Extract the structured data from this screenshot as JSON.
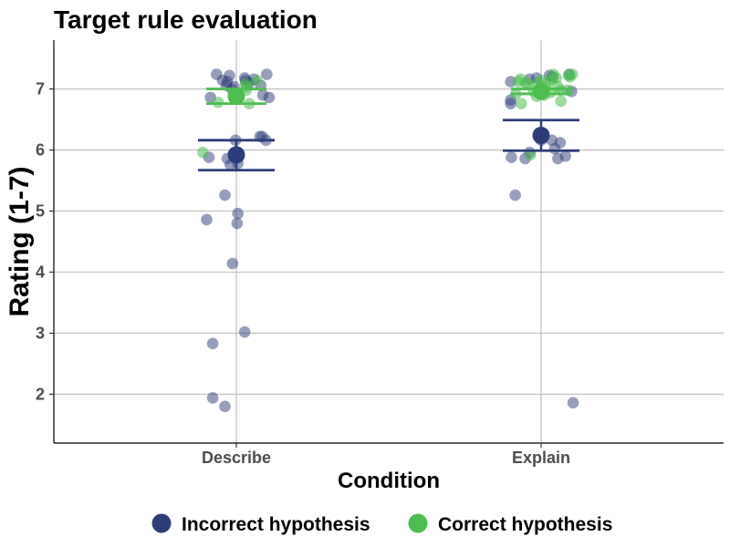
{
  "chart_data": {
    "type": "scatter",
    "title": "Target rule evaluation",
    "xlabel": "Condition",
    "ylabel": "Rating (1-7)",
    "categories": [
      "Describe",
      "Explain"
    ],
    "yticks": [
      2,
      3,
      4,
      5,
      6,
      7
    ],
    "ylim": [
      1.2,
      7.8
    ],
    "grid": true,
    "legend_position": "bottom",
    "series": [
      {
        "name": "Incorrect hypothesis",
        "color": "#2d3d7a",
        "mean": [
          5.92,
          6.24
        ],
        "error_low": [
          5.67,
          5.99
        ],
        "error_high": [
          6.16,
          6.49
        ],
        "points": [
          {
            "c": 0,
            "o": -0.156,
            "y": 7.24
          },
          {
            "c": 0,
            "o": -0.108,
            "y": 7.14
          },
          {
            "c": 0,
            "o": -0.072,
            "y": 7.12
          },
          {
            "c": 0,
            "o": -0.078,
            "y": 7.06
          },
          {
            "c": 0,
            "o": -0.054,
            "y": 7.22
          },
          {
            "c": 0,
            "o": 0.066,
            "y": 7.18
          },
          {
            "c": 0,
            "o": 0.072,
            "y": 7.14
          },
          {
            "c": 0,
            "o": 0.138,
            "y": 7.16
          },
          {
            "c": 0,
            "o": 0.192,
            "y": 7.06
          },
          {
            "c": 0,
            "o": 0.24,
            "y": 7.24
          },
          {
            "c": 0,
            "o": -0.204,
            "y": 6.86
          },
          {
            "c": 0,
            "o": -0.036,
            "y": 7.0
          },
          {
            "c": 0,
            "o": -0.018,
            "y": 7.04
          },
          {
            "c": 0,
            "o": 0.0,
            "y": 6.9
          },
          {
            "c": 0,
            "o": 0.018,
            "y": 6.86
          },
          {
            "c": 0,
            "o": 0.102,
            "y": 7.1
          },
          {
            "c": 0,
            "o": 0.258,
            "y": 6.86
          },
          {
            "c": 0,
            "o": 0.21,
            "y": 6.9
          },
          {
            "c": 0,
            "o": 0.186,
            "y": 6.22
          },
          {
            "c": 0,
            "o": 0.204,
            "y": 6.22
          },
          {
            "c": 0,
            "o": 0.234,
            "y": 6.16
          },
          {
            "c": 0,
            "o": -0.216,
            "y": 5.88
          },
          {
            "c": 0,
            "o": -0.072,
            "y": 5.86
          },
          {
            "c": 0,
            "o": -0.048,
            "y": 5.76
          },
          {
            "c": 0,
            "o": 0.0,
            "y": 5.92
          },
          {
            "c": 0,
            "o": 0.012,
            "y": 5.78
          },
          {
            "c": 0,
            "o": -0.006,
            "y": 6.16
          },
          {
            "c": 0,
            "o": -0.09,
            "y": 5.26
          },
          {
            "c": 0,
            "o": 0.012,
            "y": 4.96
          },
          {
            "c": 0,
            "o": 0.006,
            "y": 4.8
          },
          {
            "c": 0,
            "o": -0.234,
            "y": 4.86
          },
          {
            "c": 0,
            "o": -0.03,
            "y": 4.14
          },
          {
            "c": 0,
            "o": 0.066,
            "y": 3.02
          },
          {
            "c": 0,
            "o": -0.186,
            "y": 2.83
          },
          {
            "c": 0,
            "o": -0.186,
            "y": 1.94
          },
          {
            "c": 0,
            "o": -0.09,
            "y": 1.8
          },
          {
            "c": 1,
            "o": -0.24,
            "y": 7.12
          },
          {
            "c": 1,
            "o": -0.24,
            "y": 6.82
          },
          {
            "c": 1,
            "o": -0.24,
            "y": 6.76
          },
          {
            "c": 1,
            "o": -0.09,
            "y": 7.16
          },
          {
            "c": 1,
            "o": -0.036,
            "y": 7.18
          },
          {
            "c": 1,
            "o": 0.066,
            "y": 7.22
          },
          {
            "c": 1,
            "o": 0.09,
            "y": 7.2
          },
          {
            "c": 1,
            "o": 0.222,
            "y": 7.24
          },
          {
            "c": 1,
            "o": 0.24,
            "y": 6.96
          },
          {
            "c": 1,
            "o": -0.234,
            "y": 5.88
          },
          {
            "c": 1,
            "o": -0.126,
            "y": 5.86
          },
          {
            "c": 1,
            "o": -0.09,
            "y": 5.96
          },
          {
            "c": 1,
            "o": 0.0,
            "y": 6.16
          },
          {
            "c": 1,
            "o": 0.084,
            "y": 6.16
          },
          {
            "c": 1,
            "o": 0.108,
            "y": 6.02
          },
          {
            "c": 1,
            "o": 0.132,
            "y": 5.86
          },
          {
            "c": 1,
            "o": 0.15,
            "y": 6.12
          },
          {
            "c": 1,
            "o": 0.192,
            "y": 5.9
          },
          {
            "c": 1,
            "o": -0.204,
            "y": 5.26
          },
          {
            "c": 1,
            "o": 0.252,
            "y": 1.86
          }
        ]
      },
      {
        "name": "Correct hypothesis",
        "color": "#4dbd50",
        "mean": [
          6.88,
          6.96
        ],
        "error_low": [
          6.76,
          6.92
        ],
        "error_high": [
          7.0,
          7.0
        ],
        "points": [
          {
            "c": 0,
            "o": -0.144,
            "y": 6.78
          },
          {
            "c": 0,
            "o": 0.072,
            "y": 7.08
          },
          {
            "c": 0,
            "o": 0.078,
            "y": 7.04
          },
          {
            "c": 0,
            "o": 0.078,
            "y": 6.98
          },
          {
            "c": 0,
            "o": 0.102,
            "y": 6.76
          },
          {
            "c": 0,
            "o": 0.162,
            "y": 7.14
          },
          {
            "c": 0,
            "o": -0.264,
            "y": 5.96
          },
          {
            "c": 1,
            "o": -0.2,
            "y": 6.92
          },
          {
            "c": 1,
            "o": -0.18,
            "y": 7.12
          },
          {
            "c": 1,
            "o": -0.162,
            "y": 7.16
          },
          {
            "c": 1,
            "o": -0.156,
            "y": 6.76
          },
          {
            "c": 1,
            "o": -0.12,
            "y": 7.1
          },
          {
            "c": 1,
            "o": -0.11,
            "y": 7.08
          },
          {
            "c": 1,
            "o": -0.06,
            "y": 6.96
          },
          {
            "c": 1,
            "o": -0.035,
            "y": 6.88
          },
          {
            "c": 1,
            "o": -0.03,
            "y": 7.1
          },
          {
            "c": 1,
            "o": 0.0,
            "y": 7.14
          },
          {
            "c": 1,
            "o": 0.024,
            "y": 6.9
          },
          {
            "c": 1,
            "o": 0.036,
            "y": 7.04
          },
          {
            "c": 1,
            "o": 0.054,
            "y": 7.12
          },
          {
            "c": 1,
            "o": 0.072,
            "y": 6.94
          },
          {
            "c": 1,
            "o": 0.09,
            "y": 7.16
          },
          {
            "c": 1,
            "o": 0.096,
            "y": 7.24
          },
          {
            "c": 1,
            "o": 0.12,
            "y": 7.18
          },
          {
            "c": 1,
            "o": 0.132,
            "y": 7.04
          },
          {
            "c": 1,
            "o": 0.156,
            "y": 6.8
          },
          {
            "c": 1,
            "o": 0.156,
            "y": 6.98
          },
          {
            "c": 1,
            "o": 0.21,
            "y": 6.98
          },
          {
            "c": 1,
            "o": 0.228,
            "y": 7.2
          },
          {
            "c": 1,
            "o": 0.246,
            "y": 7.24
          },
          {
            "c": 1,
            "o": -0.084,
            "y": 5.92
          },
          {
            "c": 1,
            "o": 0.216,
            "y": 7.22
          }
        ]
      }
    ]
  }
}
